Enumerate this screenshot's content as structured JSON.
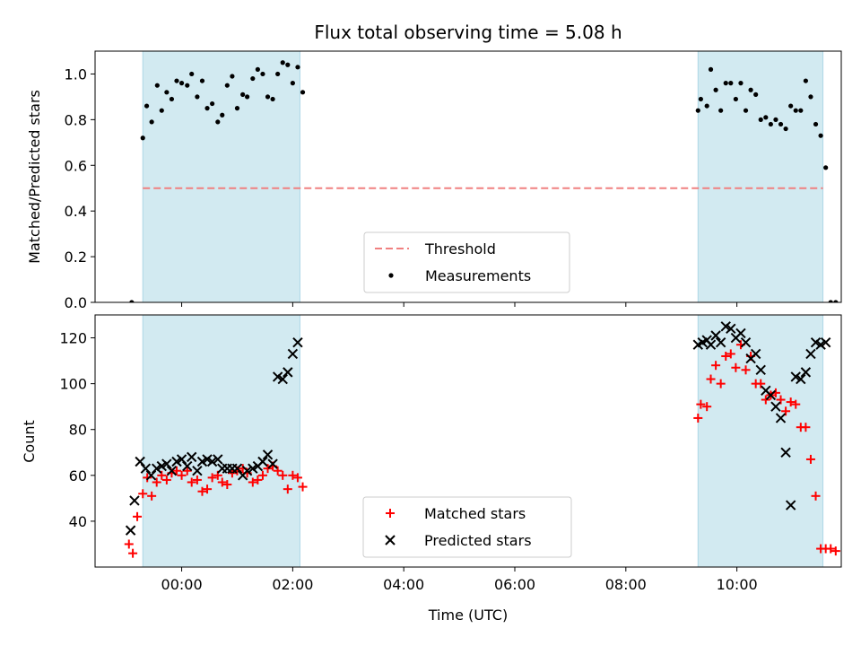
{
  "chart_data": {
    "type": "scatter",
    "title": "Flux total observing time = 5.08 h",
    "xlabel": "Time (UTC)",
    "x_unit": "hours of day, wrapping past 24 (10:00 on the next day = 34)",
    "x_range": [
      22.44,
      35.88
    ],
    "x_ticks": [
      24,
      26,
      28,
      30,
      32,
      34
    ],
    "x_tick_labels": [
      "00:00",
      "02:00",
      "04:00",
      "06:00",
      "08:00",
      "10:00"
    ],
    "shaded_intervals": [
      [
        23.3,
        26.13
      ],
      [
        33.3,
        35.55
      ]
    ],
    "shade_color": "#add8e6",
    "panels": [
      {
        "ylabel": "Matched/Predicted stars",
        "ylim": [
          0.0,
          1.1
        ],
        "y_ticks": [
          0.0,
          0.2,
          0.4,
          0.6,
          0.8,
          1.0
        ],
        "y_tick_labels": [
          "0.0",
          "0.2",
          "0.4",
          "0.6",
          "0.8",
          "1.0"
        ],
        "threshold": {
          "name": "Threshold",
          "value": 0.5,
          "x_range": [
            23.3,
            35.55
          ],
          "color": "#f08080"
        },
        "series": [
          {
            "name": "Measurements",
            "color": "#000000",
            "marker": "dot",
            "x": [
              23.1,
              23.3,
              23.37,
              23.46,
              23.56,
              23.64,
              23.73,
              23.82,
              23.91,
              24.0,
              24.1,
              24.18,
              24.28,
              24.37,
              24.46,
              24.55,
              24.65,
              24.73,
              24.82,
              24.91,
              25.0,
              25.1,
              25.18,
              25.28,
              25.37,
              25.46,
              25.55,
              25.64,
              25.73,
              25.82,
              25.91,
              26.0,
              26.09,
              26.18,
              33.3,
              33.35,
              33.46,
              33.53,
              33.62,
              33.71,
              33.8,
              33.89,
              33.98,
              34.07,
              34.16,
              34.25,
              34.34,
              34.43,
              34.52,
              34.61,
              34.7,
              34.79,
              34.88,
              34.97,
              35.06,
              35.15,
              35.24,
              35.33,
              35.42,
              35.51,
              35.6,
              35.69,
              35.78
            ],
            "y": [
              0.0,
              0.72,
              0.86,
              0.79,
              0.95,
              0.84,
              0.92,
              0.89,
              0.97,
              0.96,
              0.95,
              1.0,
              0.9,
              0.97,
              0.85,
              0.87,
              0.79,
              0.82,
              0.95,
              0.99,
              0.85,
              0.91,
              0.9,
              0.98,
              1.02,
              1.0,
              0.9,
              0.89,
              1.0,
              1.05,
              1.04,
              0.96,
              1.03,
              0.92,
              0.84,
              0.89,
              0.86,
              1.02,
              0.93,
              0.84,
              0.96,
              0.96,
              0.89,
              0.96,
              0.84,
              0.93,
              0.91,
              0.8,
              0.81,
              0.78,
              0.8,
              0.78,
              0.76,
              0.86,
              0.84,
              0.84,
              0.97,
              0.9,
              0.78,
              0.73,
              0.59,
              0.0,
              0.0
            ]
          }
        ]
      },
      {
        "ylabel": "Count",
        "ylim": [
          20,
          130
        ],
        "y_ticks": [
          40,
          60,
          80,
          100,
          120
        ],
        "y_tick_labels": [
          "40",
          "60",
          "80",
          "100",
          "120"
        ],
        "series": [
          {
            "name": "Matched stars",
            "color": "#ff0000",
            "marker": "plus",
            "x": [
              23.05,
              23.12,
              23.2,
              23.3,
              23.38,
              23.46,
              23.55,
              23.64,
              23.73,
              23.82,
              23.91,
              24.0,
              24.1,
              24.18,
              24.28,
              24.37,
              24.46,
              24.55,
              24.65,
              24.73,
              24.82,
              24.91,
              25.0,
              25.1,
              25.18,
              25.28,
              25.37,
              25.46,
              25.55,
              25.64,
              25.73,
              25.82,
              25.91,
              26.0,
              26.09,
              26.18,
              33.3,
              33.35,
              33.46,
              33.53,
              33.62,
              33.71,
              33.8,
              33.89,
              33.98,
              34.07,
              34.16,
              34.25,
              34.34,
              34.43,
              34.52,
              34.61,
              34.7,
              34.79,
              34.88,
              34.97,
              35.06,
              35.15,
              35.24,
              35.33,
              35.42,
              35.51,
              35.6,
              35.69,
              35.78
            ],
            "y": [
              30,
              26,
              42,
              52,
              59,
              51,
              57,
              60,
              58,
              61,
              62,
              60,
              62,
              57,
              58,
              53,
              54,
              59,
              60,
              57,
              56,
              61,
              62,
              63,
              61,
              57,
              58,
              60,
              63,
              64,
              62,
              60,
              54,
              60,
              59,
              55,
              85,
              91,
              90,
              102,
              108,
              100,
              112,
              113,
              107,
              117,
              106,
              112,
              100,
              100,
              93,
              95,
              96,
              93,
              88,
              92,
              91,
              81,
              81,
              67,
              51,
              28,
              28,
              28,
              27
            ],
            "show_points": 60
          },
          {
            "name": "Predicted stars",
            "color": "#000000",
            "marker": "x",
            "x": [
              23.08,
              23.15,
              23.25,
              23.35,
              23.45,
              23.55,
              23.64,
              23.73,
              23.82,
              23.91,
              24.0,
              24.1,
              24.18,
              24.28,
              24.37,
              24.46,
              24.55,
              24.65,
              24.73,
              24.82,
              24.91,
              25.0,
              25.1,
              25.18,
              25.28,
              25.37,
              25.46,
              25.55,
              25.64,
              25.73,
              25.82,
              25.91,
              26.0,
              26.09,
              33.3,
              33.38,
              33.46,
              33.53,
              33.62,
              33.71,
              33.8,
              33.89,
              33.98,
              34.07,
              34.16,
              34.25,
              34.34,
              34.43,
              34.52,
              34.61,
              34.7,
              34.79,
              34.88,
              34.97,
              35.06,
              35.15,
              35.24,
              35.33,
              35.42,
              35.51,
              35.6
            ],
            "y": [
              36,
              49,
              66,
              63,
              60,
              63,
              64,
              65,
              62,
              66,
              67,
              64,
              68,
              62,
              66,
              67,
              66,
              67,
              63,
              63,
              63,
              63,
              60,
              62,
              63,
              64,
              66,
              69,
              65,
              103,
              102,
              105,
              113,
              118,
              117,
              118,
              119,
              117,
              121,
              118,
              125,
              124,
              120,
              122,
              118,
              111,
              113,
              106,
              97,
              95,
              90,
              85,
              70,
              47,
              103,
              102,
              105,
              113,
              118,
              117,
              118
            ]
          }
        ]
      }
    ],
    "legends": [
      {
        "panel": 0,
        "placement": "lower-center",
        "entries": [
          "Threshold",
          "Measurements"
        ]
      },
      {
        "panel": 1,
        "placement": "lower-center",
        "entries": [
          "Matched stars",
          "Predicted stars"
        ]
      }
    ],
    "grid": false
  }
}
